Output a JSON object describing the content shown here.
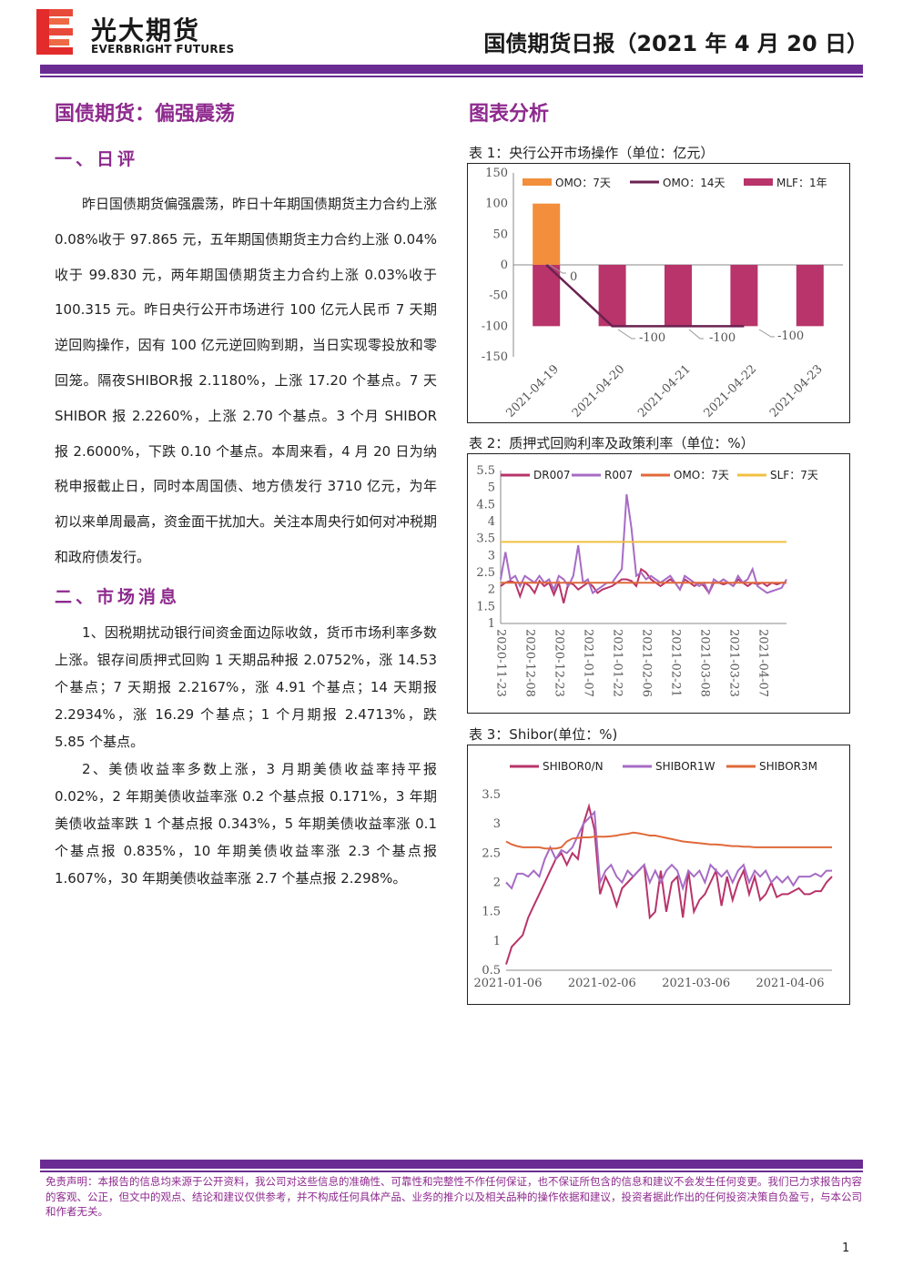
{
  "header": {
    "brand_cn": "光大期货",
    "brand_en": "EVERBRIGHT FUTURES",
    "report_title": "国债期货日报（2021 年 4 月 20 日）"
  },
  "left": {
    "main_title": "国债期货：偏强震荡",
    "section1_title": "一、日评",
    "section1_text": "昨日国债期货偏强震荡，昨日十年期国债期货主力合约上涨 0.08%收于 97.865 元，五年期国债期货主力合约上涨 0.04%收于 99.830 元，两年期国债期货主力合约上涨 0.03%收于 100.315 元。昨日央行公开市场进行 100 亿元人民币 7 天期逆回购操作，因有 100 亿元逆回购到期，当日实现零投放和零回笼。隔夜SHIBOR报 2.1180%，上涨 17.20 个基点。7 天 SHIBOR 报 2.2260%，上涨 2.70 个基点。3 个月 SHIBOR 报 2.6000%，下跌 0.10 个基点。本周来看，4 月 20 日为纳税申报截止日，同时本周国债、地方债发行 3710 亿元，为年初以来单周最高，资金面干扰加大。关注本周央行如何对冲税期和政府债发行。",
    "section2_title": "二、市场消息",
    "news1": "1、因税期扰动银行间资金面边际收敛，货币市场利率多数上涨。银存间质押式回购 1 天期品种报 2.0752%，涨 14.53 个基点；7 天期报 2.2167%，涨 4.91 个基点；14 天期报 2.2934%，涨 16.29 个基点；1 个月期报 2.4713%，跌 5.85 个基点。",
    "news2": "2、美债收益率多数上涨，3 月期美债收益率持平报 0.02%，2 年期美债收益率涨 0.2 个基点报 0.171%，3 年期美债收益率跌 1 个基点报 0.343%，5 年期美债收益率涨 0.1 个基点报 0.835%，10 年期美债收益率涨 2.3 个基点报 1.607%，30 年期美债收益率涨 2.7 个基点报 2.298%。"
  },
  "right": {
    "section_title": "图表分析",
    "chart1_caption": "表 1：央行公开市场操作（单位：亿元）",
    "chart2_caption": "表 2：质押式回购利率及政策利率（单位：%）",
    "chart3_caption": "表 3：Shibor(单位：%)"
  },
  "chart_data": [
    {
      "type": "bar",
      "categories": [
        "2021-04-19",
        "2021-04-20",
        "2021-04-21",
        "2021-04-22",
        "2021-04-23"
      ],
      "series": [
        {
          "name": "OMO：7天",
          "kind": "bar",
          "values": [
            100,
            0,
            0,
            0,
            0
          ],
          "color": "#f28e3c"
        },
        {
          "name": "OMO：14天",
          "kind": "line",
          "values": [
            0,
            -100,
            -100,
            -100,
            null
          ],
          "color": "#6b2150"
        },
        {
          "name": "MLF：1年",
          "kind": "bar",
          "values": [
            -100,
            -100,
            -100,
            -100,
            -100
          ],
          "color": "#b8346a"
        }
      ],
      "ylim": [
        -150,
        150
      ],
      "yticks": [
        150,
        100,
        50,
        0,
        -50,
        -100,
        -150
      ],
      "annotations": [
        "0",
        "-100",
        "-100",
        "-100"
      ],
      "legend": "top"
    },
    {
      "type": "line",
      "xticks": [
        "2020-11-23",
        "2020-12-08",
        "2020-12-23",
        "2021-01-07",
        "2021-01-22",
        "2021-02-06",
        "2021-02-21",
        "2021-03-08",
        "2021-03-23",
        "2021-04-07"
      ],
      "series": [
        {
          "name": "DR007",
          "color": "#b8346a",
          "values": [
            2.1,
            2.2,
            2.25,
            2.2,
            1.8,
            2.2,
            2.1,
            1.9,
            2.25,
            2.1,
            2.2,
            1.85,
            2.2,
            1.6,
            2.2,
            2.15,
            2.0,
            2.1,
            2.2,
            2.1,
            1.9,
            2.0,
            2.05,
            2.1,
            2.2,
            2.3,
            2.3,
            2.25,
            2.1,
            2.6,
            2.5,
            2.3,
            2.2,
            2.1,
            2.2,
            2.3,
            2.2,
            2.0,
            2.3,
            2.2,
            2.1,
            2.2,
            2.1,
            1.9,
            2.2,
            2.2,
            2.15,
            2.2,
            2.1,
            2.3,
            2.2,
            2.1,
            2.2,
            2.15,
            2.2,
            2.1,
            2.2,
            2.15,
            2.2,
            2.2
          ]
        },
        {
          "name": "R007",
          "color": "#a66cc5",
          "values": [
            2.3,
            3.1,
            2.3,
            2.4,
            2.1,
            2.4,
            2.3,
            2.2,
            2.4,
            2.2,
            2.3,
            2.0,
            2.4,
            2.3,
            2.1,
            2.4,
            3.3,
            2.2,
            2.3,
            1.9,
            2.0,
            2.1,
            2.2,
            2.2,
            2.4,
            2.6,
            4.8,
            3.8,
            2.4,
            2.5,
            2.3,
            2.4,
            2.3,
            2.2,
            2.3,
            2.4,
            2.2,
            2.0,
            2.4,
            2.3,
            2.2,
            2.1,
            2.2,
            1.9,
            2.3,
            2.2,
            2.3,
            2.2,
            2.1,
            2.4,
            2.2,
            2.3,
            2.6,
            2.1,
            2.0,
            1.9,
            1.95,
            2.0,
            2.05,
            2.3
          ]
        },
        {
          "name": "OMO：7天",
          "color": "#e0693a",
          "values": [
            2.2,
            2.2
          ]
        },
        {
          "name": "SLF：7天",
          "color": "#f0c040",
          "values": [
            3.4,
            3.4
          ]
        }
      ],
      "ylim": [
        1,
        5.5
      ],
      "yticks": [
        5.5,
        5,
        4.5,
        4,
        3.5,
        3,
        2.5,
        2,
        1.5,
        1
      ],
      "legend": "top"
    },
    {
      "type": "line",
      "xticks": [
        "2021-01-06",
        "2021-02-06",
        "2021-03-06",
        "2021-04-06"
      ],
      "series": [
        {
          "name": "SHIBOR0/N",
          "color": "#b8346a",
          "values": [
            0.6,
            0.9,
            1.0,
            1.1,
            1.4,
            1.6,
            1.8,
            2.0,
            2.2,
            2.4,
            2.5,
            2.3,
            2.5,
            2.4,
            3.0,
            3.3,
            2.9,
            1.8,
            2.1,
            1.9,
            1.6,
            1.9,
            2.0,
            2.1,
            2.2,
            2.3,
            1.4,
            1.5,
            2.2,
            1.5,
            2.0,
            2.1,
            1.4,
            2.2,
            1.5,
            1.7,
            1.8,
            2.0,
            2.2,
            1.6,
            2.1,
            1.7,
            2.0,
            2.2,
            1.8,
            2.1,
            1.7,
            1.8,
            2.0,
            1.75,
            1.8,
            1.8,
            1.85,
            1.9,
            1.8,
            1.8,
            1.85,
            1.85,
            2.0,
            2.1
          ]
        },
        {
          "name": "SHIBOR1W",
          "color": "#a66cc5",
          "values": [
            2.0,
            1.9,
            2.15,
            2.15,
            2.1,
            2.2,
            2.1,
            2.4,
            2.6,
            2.4,
            2.55,
            2.5,
            2.6,
            2.8,
            3.0,
            3.1,
            3.2,
            2.0,
            2.2,
            2.3,
            2.1,
            2.0,
            2.2,
            2.1,
            2.2,
            2.3,
            2.0,
            2.2,
            2.0,
            2.2,
            2.3,
            2.2,
            1.9,
            2.2,
            2.1,
            2.2,
            2.0,
            2.3,
            2.2,
            2.1,
            2.2,
            2.0,
            2.2,
            2.3,
            2.0,
            2.2,
            2.1,
            2.2,
            2.0,
            2.1,
            2.0,
            2.1,
            1.95,
            2.1,
            2.1,
            2.1,
            2.15,
            2.1,
            2.2,
            2.2
          ]
        },
        {
          "name": "SHIBOR3M",
          "color": "#e0693a",
          "values": [
            2.7,
            2.65,
            2.62,
            2.6,
            2.6,
            2.6,
            2.6,
            2.58,
            2.58,
            2.58,
            2.6,
            2.7,
            2.75,
            2.76,
            2.77,
            2.77,
            2.78,
            2.78,
            2.78,
            2.79,
            2.8,
            2.82,
            2.83,
            2.85,
            2.84,
            2.82,
            2.8,
            2.8,
            2.78,
            2.76,
            2.74,
            2.72,
            2.7,
            2.69,
            2.68,
            2.67,
            2.66,
            2.65,
            2.65,
            2.64,
            2.63,
            2.62,
            2.62,
            2.61,
            2.61,
            2.6,
            2.6,
            2.6,
            2.6,
            2.6,
            2.6,
            2.6,
            2.6,
            2.6,
            2.6,
            2.6,
            2.6,
            2.6,
            2.6,
            2.6
          ]
        }
      ],
      "ylim": [
        0.5,
        3.5
      ],
      "yticks": [
        3.5,
        3,
        2.5,
        2,
        1.5,
        1,
        0.5
      ],
      "legend": "top"
    }
  ],
  "footer": {
    "disclaimer": "免责声明：本报告的信息均来源于公开资料，我公司对这些信息的准确性、可靠性和完整性不作任何保证，也不保证所包含的信息和建议不会发生任何变更。我们已力求报告内容的客观、公正，但文中的观点、结论和建议仅供参考，并不构成任何具体产品、业务的推介以及相关品种的操作依据和建议，投资者据此作出的任何投资决策自负盈亏，与本公司和作者无关。",
    "page_number": "1"
  }
}
